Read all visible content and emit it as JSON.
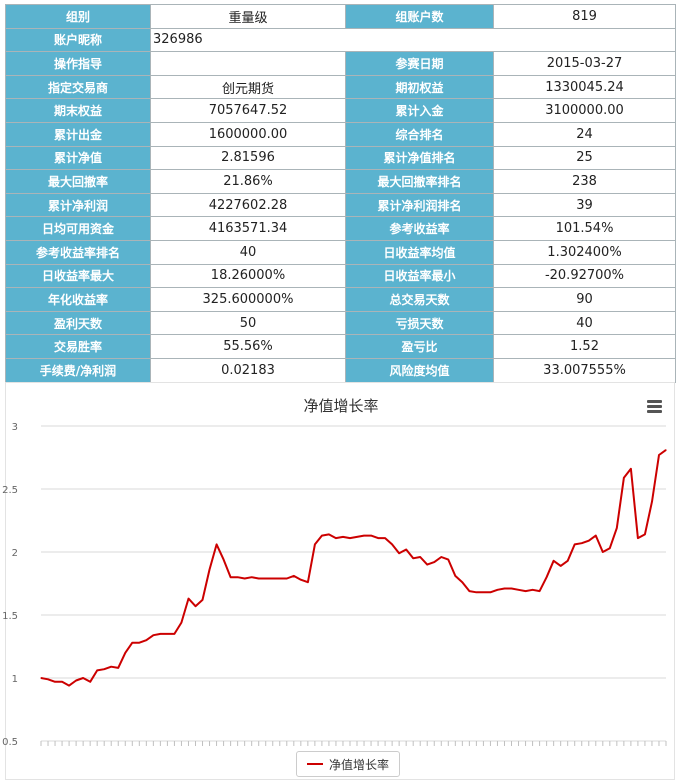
{
  "info_table": {
    "rows": [
      [
        {
          "label": "组别",
          "value": "重量级"
        },
        {
          "label": "组账户数",
          "value": "819"
        }
      ],
      [
        {
          "label": "账户昵称",
          "value": "326986"
        }
      ],
      [
        {
          "label": "操作指导",
          "value": ""
        },
        {
          "label": "参赛日期",
          "value": "2015-03-27"
        }
      ],
      [
        {
          "label": "指定交易商",
          "value": "创元期货"
        },
        {
          "label": "期初权益",
          "value": "1330045.24"
        }
      ],
      [
        {
          "label": "期末权益",
          "value": "7057647.52"
        },
        {
          "label": "累计入金",
          "value": "3100000.00"
        }
      ],
      [
        {
          "label": "累计出金",
          "value": "1600000.00"
        },
        {
          "label": "综合排名",
          "value": "24"
        }
      ],
      [
        {
          "label": "累计净值",
          "value": "2.81596"
        },
        {
          "label": "累计净值排名",
          "value": "25"
        }
      ],
      [
        {
          "label": "最大回撤率",
          "value": "21.86%"
        },
        {
          "label": "最大回撤率排名",
          "value": "238"
        }
      ],
      [
        {
          "label": "累计净利润",
          "value": "4227602.28"
        },
        {
          "label": "累计净利润排名",
          "value": "39"
        }
      ],
      [
        {
          "label": "日均可用资金",
          "value": "4163571.34"
        },
        {
          "label": "参考收益率",
          "value": "101.54%"
        }
      ],
      [
        {
          "label": "参考收益率排名",
          "value": "40"
        },
        {
          "label": "日收益率均值",
          "value": "1.302400%"
        }
      ],
      [
        {
          "label": "日收益率最大",
          "value": "18.26000%"
        },
        {
          "label": "日收益率最小",
          "value": "-20.92700%"
        }
      ],
      [
        {
          "label": "年化收益率",
          "value": "325.600000%"
        },
        {
          "label": "总交易天数",
          "value": "90"
        }
      ],
      [
        {
          "label": "盈利天数",
          "value": "50"
        },
        {
          "label": "亏损天数",
          "value": "40"
        }
      ],
      [
        {
          "label": "交易胜率",
          "value": "55.56%"
        },
        {
          "label": "盈亏比",
          "value": "1.52"
        }
      ],
      [
        {
          "label": "手续费/净利润",
          "value": "0.02183"
        },
        {
          "label": "风险度均值",
          "value": "33.007555%"
        }
      ]
    ]
  },
  "colors": {
    "label_bg": "#5bb3cf",
    "line": "#cc0000",
    "grid": "#d8d8d8"
  },
  "chart_data": {
    "type": "line",
    "title": "净值增长率",
    "xlabel": "",
    "ylabel": "",
    "ylim": [
      0.5,
      3
    ],
    "yticks": [
      "0.5",
      "1",
      "1.5",
      "2",
      "2.5",
      "3"
    ],
    "grid": true,
    "legend_position": "bottom-center",
    "menu_icon": "hamburger-menu-icon",
    "series": [
      {
        "name": "净值增长率",
        "values": [
          1.0,
          0.99,
          0.97,
          0.97,
          0.94,
          0.98,
          1.0,
          0.97,
          1.06,
          1.07,
          1.09,
          1.08,
          1.2,
          1.28,
          1.28,
          1.3,
          1.34,
          1.35,
          1.35,
          1.35,
          1.44,
          1.63,
          1.57,
          1.62,
          1.86,
          2.06,
          1.94,
          1.8,
          1.8,
          1.79,
          1.8,
          1.79,
          1.79,
          1.79,
          1.79,
          1.79,
          1.81,
          1.78,
          1.76,
          2.06,
          2.13,
          2.14,
          2.11,
          2.12,
          2.11,
          2.12,
          2.13,
          2.13,
          2.11,
          2.11,
          2.06,
          1.99,
          2.02,
          1.95,
          1.96,
          1.9,
          1.92,
          1.96,
          1.94,
          1.81,
          1.76,
          1.69,
          1.68,
          1.68,
          1.68,
          1.7,
          1.71,
          1.71,
          1.7,
          1.69,
          1.7,
          1.69,
          1.8,
          1.93,
          1.89,
          1.93,
          2.06,
          2.07,
          2.09,
          2.13,
          2.0,
          2.03,
          2.19,
          2.59,
          2.66,
          2.11,
          2.14,
          2.4,
          2.77,
          2.81
        ]
      }
    ]
  }
}
